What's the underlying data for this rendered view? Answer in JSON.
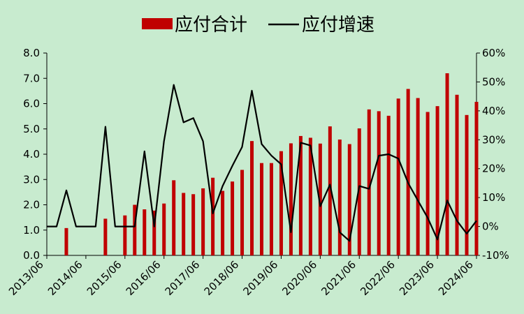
{
  "chart_data": {
    "type": "bar+line",
    "legend": {
      "placement": "top-center",
      "bar_label": "应付合计",
      "line_label": "应付增速"
    },
    "colors": {
      "bar": "#C00000",
      "line": "#000000",
      "background": "#C8EBCF"
    },
    "grid": false,
    "x_tick_labels": [
      "2013/06",
      "2014/06",
      "2015/06",
      "2016/06",
      "2017/06",
      "2018/06",
      "2019/06",
      "2020/06",
      "2021/06",
      "2022/06",
      "2023/06",
      "2024/06"
    ],
    "y_left": {
      "range": [
        0,
        8
      ],
      "tick_labels": [
        "0.0",
        "1.0",
        "2.0",
        "3.0",
        "4.0",
        "5.0",
        "6.0",
        "7.0",
        "8.0"
      ]
    },
    "y_right": {
      "range": [
        -10,
        60
      ],
      "tick_labels": [
        "-10%",
        "0%",
        "10%",
        "20%",
        "30%",
        "40%",
        "50%",
        "60%"
      ]
    },
    "x": [
      "2013/06",
      "2013/09",
      "2013/12",
      "2014/03",
      "2014/06",
      "2014/09",
      "2014/12",
      "2015/03",
      "2015/06",
      "2015/09",
      "2015/12",
      "2016/03",
      "2016/06",
      "2016/09",
      "2016/12",
      "2017/03",
      "2017/06",
      "2017/09",
      "2017/12",
      "2018/03",
      "2018/06",
      "2018/09",
      "2018/12",
      "2019/03",
      "2019/06",
      "2019/09",
      "2019/12",
      "2020/03",
      "2020/06",
      "2020/09",
      "2020/12",
      "2021/03",
      "2021/06",
      "2021/09",
      "2021/12",
      "2022/03",
      "2022/06",
      "2022/09",
      "2022/12",
      "2023/03",
      "2023/06",
      "2023/09",
      "2023/12",
      "2024/03",
      "2024/06"
    ],
    "series": [
      {
        "name": "应付合计",
        "type": "bar",
        "axis": "left",
        "values": [
          null,
          null,
          1.08,
          null,
          null,
          null,
          1.45,
          null,
          1.58,
          2.0,
          1.82,
          1.77,
          2.05,
          2.97,
          2.47,
          2.42,
          2.65,
          3.07,
          2.55,
          2.92,
          3.38,
          4.52,
          3.65,
          3.65,
          4.12,
          4.43,
          4.72,
          4.65,
          4.42,
          5.1,
          4.58,
          4.4,
          5.02,
          5.77,
          5.7,
          5.52,
          6.2,
          6.58,
          6.22,
          5.67,
          5.9,
          7.2,
          6.35,
          5.55,
          6.07
        ]
      },
      {
        "name": "应付增速",
        "type": "line",
        "axis": "right",
        "values": [
          0,
          0,
          12.5,
          0,
          0,
          0,
          34.5,
          0,
          0,
          0,
          26,
          0,
          29.5,
          49,
          36,
          37.5,
          29.5,
          4.5,
          14,
          21,
          27.5,
          47,
          28.5,
          24.5,
          21.5,
          -2,
          29,
          28,
          7,
          14.5,
          -2,
          -5,
          14,
          13,
          24.5,
          25,
          23.5,
          15,
          9,
          3,
          -4.5,
          9,
          2,
          -2.5,
          2
        ]
      }
    ]
  }
}
